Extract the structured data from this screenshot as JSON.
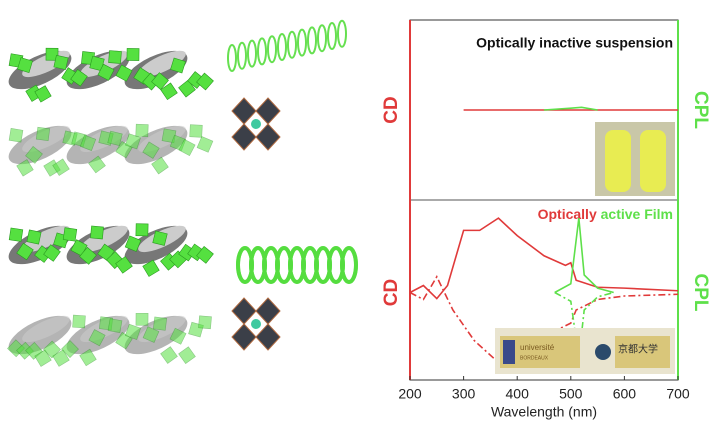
{
  "chart_data": {
    "type": "line",
    "xlabel": "Wavelength (nm)",
    "xlim": [
      200,
      700
    ],
    "xticks": [
      200,
      300,
      400,
      500,
      600,
      700
    ],
    "panels": [
      {
        "title": "Optically inactive suspension",
        "left_label": "CD",
        "right_label": "CPL",
        "ylim": [
          -1,
          1
        ],
        "series": [
          {
            "name": "CD",
            "color": "#e03a3a",
            "dash": false,
            "x": [
              300,
              400,
              500,
              600,
              700
            ],
            "values": [
              0,
              0,
              0,
              0,
              0
            ]
          },
          {
            "name": "CPL",
            "color": "#5ee04a",
            "dash": false,
            "x": [
              450,
              500,
              520,
              550
            ],
            "values": [
              0,
              0.02,
              0.03,
              0
            ]
          }
        ]
      },
      {
        "title_parts": [
          {
            "text": "Optically",
            "color": "#e03a3a"
          },
          {
            "text": "active Film",
            "color": "#5ee04a"
          }
        ],
        "left_label": "CD",
        "right_label": "CPL",
        "ylim": [
          -1,
          1
        ],
        "logo_texts": [
          "université",
          "BORDEAUX",
          "京都大学"
        ],
        "series": [
          {
            "name": "CD",
            "color": "#e03a3a",
            "dash": false,
            "x": [
              200,
              225,
              250,
              270,
              300,
              330,
              365,
              400,
              450,
              490,
              500,
              510,
              550,
              600,
              700
            ],
            "values": [
              0,
              0.08,
              -0.07,
              0.08,
              0.71,
              0.71,
              0.85,
              0.65,
              0.42,
              0.31,
              0.34,
              0.14,
              0.06,
              0.05,
              0.02
            ]
          },
          {
            "name": "CD",
            "color": "#e03a3a",
            "dash": true,
            "x": [
              200,
              225,
              250,
              280,
              320,
              365,
              400,
              450,
              500,
              510,
              550,
              600,
              700
            ],
            "values": [
              0,
              -0.08,
              0.18,
              -0.2,
              -0.55,
              -0.8,
              -0.7,
              -0.5,
              -0.35,
              -0.2,
              -0.08,
              -0.04,
              -0.02
            ]
          },
          {
            "name": "CPL",
            "color": "#5ee04a",
            "dash": false,
            "x": [
              470,
              500,
              515,
              525,
              550,
              580
            ],
            "values": [
              0,
              0.1,
              0.85,
              0.2,
              0.05,
              0
            ]
          },
          {
            "name": "CPL",
            "color": "#5ee04a",
            "dash": true,
            "x": [
              470,
              500,
              515,
              525,
              550,
              580
            ],
            "values": [
              0,
              -0.1,
              -0.75,
              -0.2,
              -0.05,
              0
            ]
          }
        ]
      }
    ]
  }
}
